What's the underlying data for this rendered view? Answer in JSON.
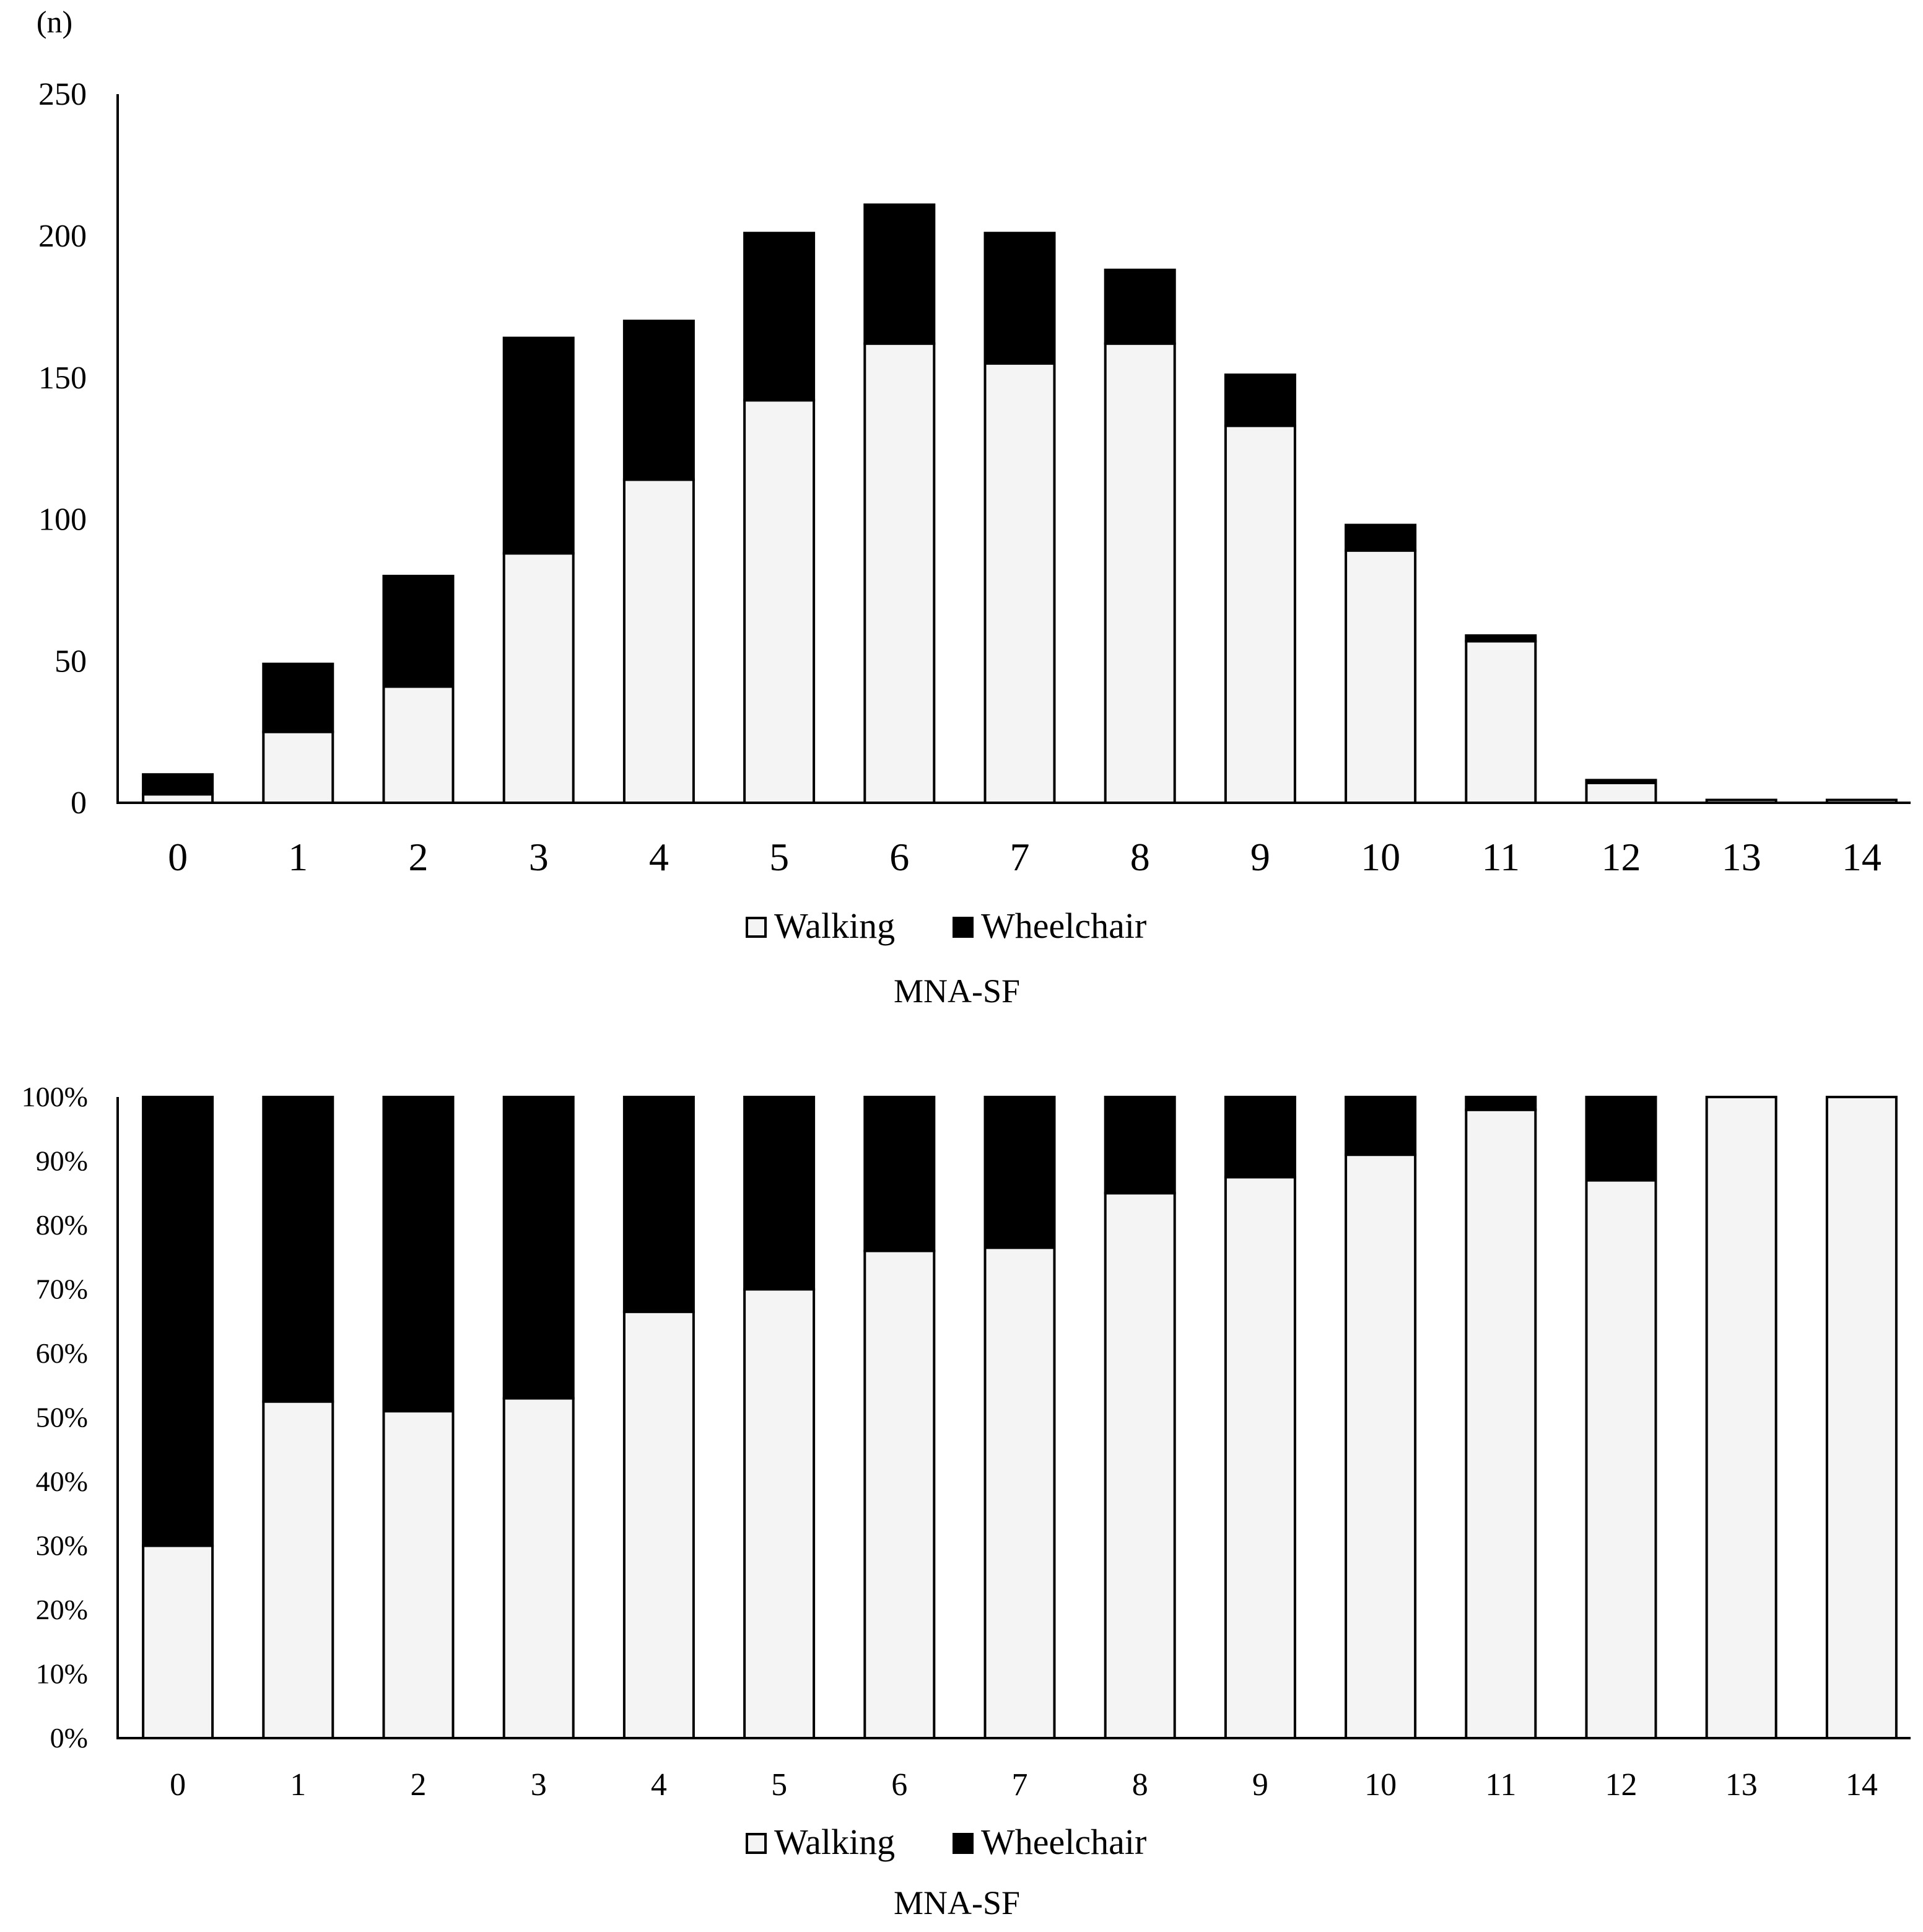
{
  "legend_labels": {
    "walking": "Walking",
    "wheelchair": "Wheelchair"
  },
  "colors": {
    "walking": "#f4f4f4",
    "wheelchair": "#000000",
    "stroke": "#000000"
  },
  "chart_data": [
    {
      "type": "bar",
      "stacked": true,
      "title": "",
      "unit_label": "(n)",
      "xlabel": "MNA-SF",
      "ylabel": "",
      "ylim": [
        0,
        250
      ],
      "yticks": [
        0,
        50,
        100,
        150,
        200,
        250
      ],
      "ytick_labels": [
        "0",
        "50",
        "100",
        "150",
        "200",
        "250"
      ],
      "categories": [
        "0",
        "1",
        "2",
        "3",
        "4",
        "5",
        "6",
        "7",
        "8",
        "9",
        "10",
        "11",
        "12",
        "13",
        "14"
      ],
      "series": [
        {
          "name": "Walking",
          "values": [
            3,
            25,
            41,
            88,
            114,
            142,
            162,
            155,
            162,
            133,
            89,
            57,
            7,
            1,
            1
          ]
        },
        {
          "name": "Wheelchair",
          "values": [
            7,
            24,
            39,
            76,
            56,
            59,
            49,
            46,
            26,
            18,
            9,
            2,
            1,
            0,
            0
          ]
        }
      ],
      "legend_position": "bottom"
    },
    {
      "type": "bar",
      "stacked": true,
      "percent": true,
      "title": "",
      "xlabel": "MNA-SF",
      "ylabel": "",
      "ylim": [
        0,
        100
      ],
      "yticks": [
        0,
        10,
        20,
        30,
        40,
        50,
        60,
        70,
        80,
        90,
        100
      ],
      "ytick_labels": [
        "0%",
        "10%",
        "20%",
        "30%",
        "40%",
        "50%",
        "60%",
        "70%",
        "80%",
        "90%",
        "100%"
      ],
      "categories": [
        "0",
        "1",
        "2",
        "3",
        "4",
        "5",
        "6",
        "7",
        "8",
        "9",
        "10",
        "11",
        "12",
        "13",
        "14"
      ],
      "series": [
        {
          "name": "Walking",
          "values": [
            30,
            52.5,
            51,
            53,
            66.5,
            70,
            76,
            76.5,
            85,
            87.5,
            91,
            98,
            87,
            100,
            100
          ]
        },
        {
          "name": "Wheelchair",
          "values": [
            70,
            47.5,
            49,
            47,
            33.5,
            30,
            24,
            23.5,
            15,
            12.5,
            9,
            2,
            13,
            0,
            0
          ]
        }
      ],
      "legend_position": "bottom"
    }
  ]
}
